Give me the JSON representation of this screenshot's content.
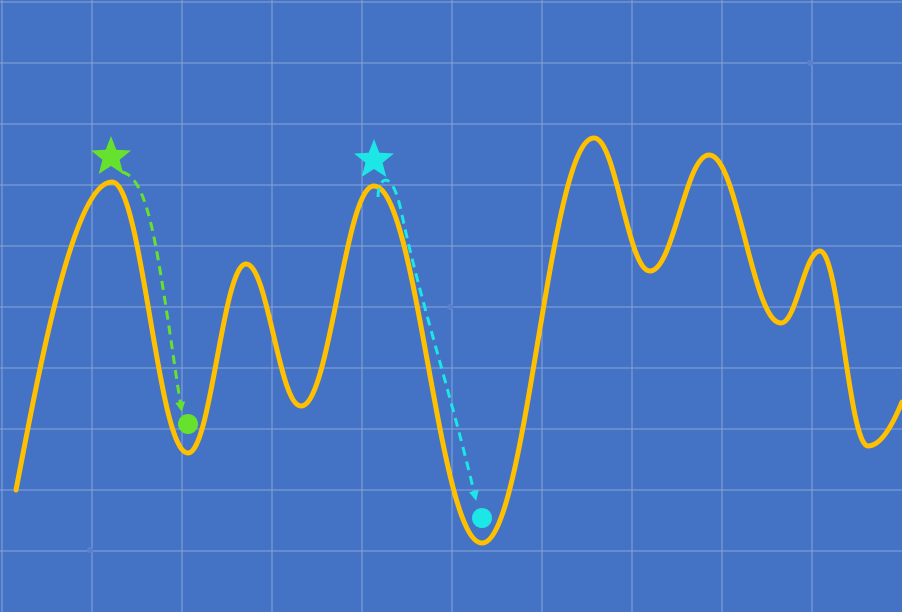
{
  "diagram": {
    "background_color": "#4472C4",
    "grid_color": "#8FAADC",
    "curve_color": "#FFC000",
    "series_a_color": "#66E22E",
    "series_b_color": "#1CE6E6",
    "grid": true,
    "markers": [
      {
        "name": "green-start-star",
        "kind": "star",
        "color_key": "series_a_color"
      },
      {
        "name": "green-end-dot",
        "kind": "dot",
        "color_key": "series_a_color"
      },
      {
        "name": "cyan-start-star",
        "kind": "star",
        "color_key": "series_b_color"
      },
      {
        "name": "cyan-end-dot",
        "kind": "dot",
        "color_key": "series_b_color"
      }
    ],
    "arrows": [
      {
        "name": "green-descent-arrow",
        "style": "dashed",
        "color_key": "series_a_color"
      },
      {
        "name": "cyan-descent-arrow",
        "style": "dashed",
        "color_key": "series_b_color"
      }
    ]
  }
}
